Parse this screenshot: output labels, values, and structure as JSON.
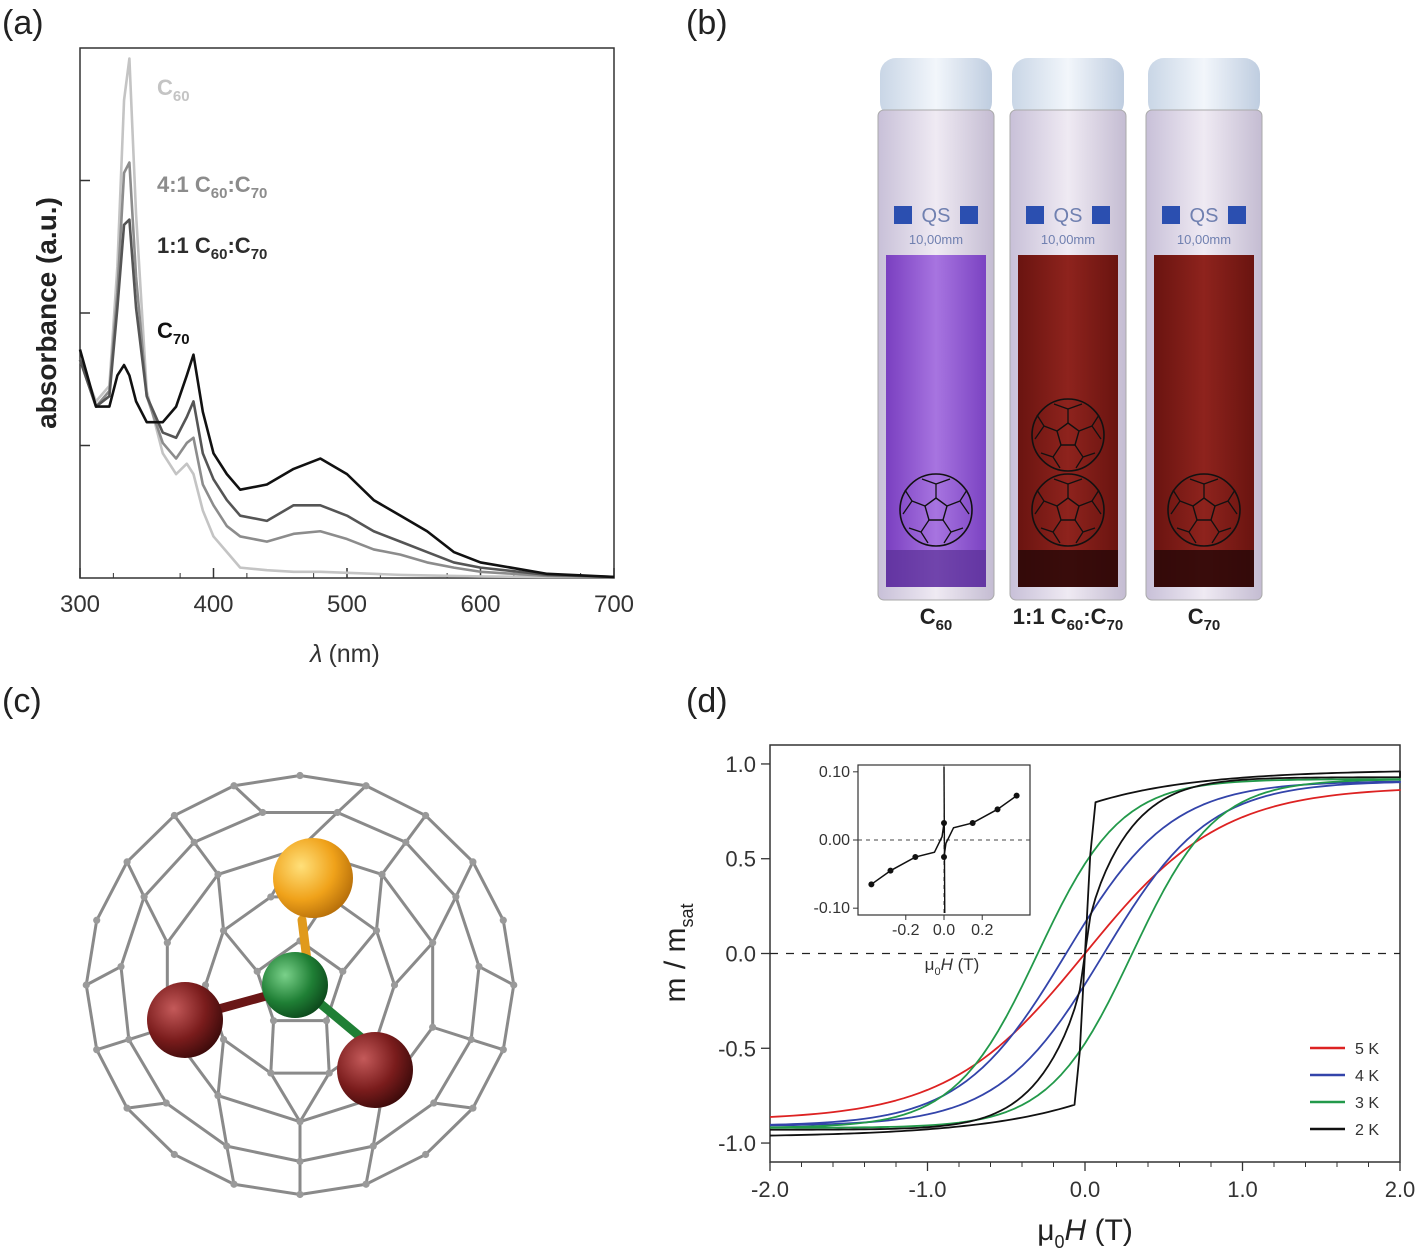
{
  "panels": {
    "a": {
      "label": "(a)",
      "ylabel": "absorbance (a.u.)",
      "xlabel_symbol": "λ",
      "xlabel_unit": "(nm)",
      "xticks": [
        "300",
        "400",
        "500",
        "600",
        "700"
      ],
      "legend": [
        {
          "base": "C",
          "sub": "60",
          "mid": "",
          "base2": "",
          "sub2": "",
          "color": "#c4c4c4"
        },
        {
          "base": "4:1 C",
          "sub": "60",
          "mid": ":C",
          "base2": "",
          "sub2": "70",
          "color": "#8c8c8c"
        },
        {
          "base": "1:1 C",
          "sub": "60",
          "mid": ":C",
          "base2": "",
          "sub2": "70",
          "color": "#2d2d2d"
        },
        {
          "base": "C",
          "sub": "70",
          "mid": "",
          "base2": "",
          "sub2": "",
          "color": "#111111"
        }
      ]
    },
    "b": {
      "label": "(b)",
      "cuvette_text": "QS",
      "cuvette_size": "10,00mm",
      "captions": [
        {
          "pre": "C",
          "sub": "60",
          "mid": "",
          "sub2": ""
        },
        {
          "pre": "1:1 C",
          "sub": "60",
          "mid": ":C",
          "sub2": "70"
        },
        {
          "pre": "C",
          "sub": "70",
          "mid": "",
          "sub2": ""
        }
      ],
      "colors": {
        "purple": "#8e52cf",
        "red": "#7d1a16"
      }
    },
    "c": {
      "label": "(c)",
      "colors": {
        "cage": "#888888",
        "gold": "#f0a21a",
        "green": "#1f7f35",
        "maroon": "#7a1c1c"
      }
    },
    "d": {
      "label": "(d)",
      "ylabel_pre": "m / m",
      "ylabel_sub": "sat",
      "xlabel_pre": "μ",
      "xlabel_sub": "0",
      "xlabel_italic": "H",
      "xlabel_unit": " (T)",
      "xticks": [
        "-2.0",
        "-1.0",
        "0.0",
        "1.0",
        "2.0"
      ],
      "yticks": [
        "1.0",
        "0.5",
        "0.0",
        "-0.5",
        "-1.0"
      ],
      "legend": [
        {
          "name": "5 K",
          "color": "#dd2222"
        },
        {
          "name": "4 K",
          "color": "#3344aa"
        },
        {
          "name": "3 K",
          "color": "#22994a"
        },
        {
          "name": "2 K",
          "color": "#111111"
        }
      ],
      "inset": {
        "xticks": [
          "-0.2",
          "0.0",
          "0.2"
        ],
        "yticks": [
          "0.10",
          "0.00",
          "-0.10"
        ],
        "xlabel_pre": "μ",
        "xlabel_sub": "0",
        "xlabel_italic": "H",
        "xlabel_unit": " (T)"
      }
    }
  },
  "chart_data": [
    {
      "type": "line",
      "panel": "a",
      "xlabel": "λ (nm)",
      "ylabel": "absorbance (a.u.)",
      "xlim": [
        300,
        700
      ],
      "ylim": [
        0,
        1.0
      ],
      "series": [
        {
          "name": "C60",
          "color": "#c4c4c4",
          "x": [
            300,
            312,
            322,
            328,
            333,
            337,
            342,
            350,
            362,
            372,
            380,
            385,
            392,
            400,
            410,
            420,
            440,
            460,
            480,
            500,
            520,
            540,
            560,
            580,
            600,
            650,
            700
          ],
          "y": [
            0.42,
            0.34,
            0.37,
            0.6,
            0.92,
            1.0,
            0.7,
            0.36,
            0.24,
            0.2,
            0.22,
            0.2,
            0.13,
            0.08,
            0.05,
            0.02,
            0.015,
            0.012,
            0.012,
            0.01,
            0.008,
            0.006,
            0.005,
            0.004,
            0.003,
            0.002,
            0.002
          ]
        },
        {
          "name": "4:1 C60:C70",
          "color": "#8c8c8c",
          "x": [
            300,
            312,
            322,
            328,
            333,
            337,
            342,
            350,
            362,
            372,
            380,
            385,
            392,
            400,
            410,
            420,
            440,
            460,
            480,
            500,
            520,
            540,
            560,
            580,
            600,
            650,
            700
          ],
          "y": [
            0.42,
            0.33,
            0.36,
            0.55,
            0.78,
            0.8,
            0.58,
            0.35,
            0.26,
            0.23,
            0.26,
            0.27,
            0.18,
            0.14,
            0.1,
            0.08,
            0.07,
            0.085,
            0.09,
            0.075,
            0.055,
            0.045,
            0.03,
            0.02,
            0.012,
            0.004,
            0.002
          ]
        },
        {
          "name": "1:1 C60:C70",
          "color": "#555555",
          "x": [
            300,
            312,
            322,
            328,
            333,
            337,
            342,
            350,
            362,
            372,
            380,
            385,
            392,
            400,
            410,
            420,
            440,
            460,
            480,
            500,
            520,
            540,
            560,
            580,
            600,
            650,
            700
          ],
          "y": [
            0.42,
            0.33,
            0.35,
            0.52,
            0.68,
            0.69,
            0.52,
            0.35,
            0.28,
            0.27,
            0.31,
            0.34,
            0.24,
            0.19,
            0.15,
            0.12,
            0.11,
            0.14,
            0.14,
            0.12,
            0.09,
            0.07,
            0.05,
            0.03,
            0.02,
            0.006,
            0.002
          ]
        },
        {
          "name": "C70",
          "color": "#111111",
          "x": [
            300,
            312,
            322,
            328,
            333,
            337,
            342,
            350,
            362,
            372,
            380,
            385,
            392,
            400,
            410,
            420,
            440,
            460,
            480,
            500,
            520,
            540,
            560,
            580,
            600,
            650,
            700
          ],
          "y": [
            0.44,
            0.33,
            0.33,
            0.39,
            0.41,
            0.39,
            0.34,
            0.3,
            0.3,
            0.33,
            0.39,
            0.43,
            0.32,
            0.24,
            0.2,
            0.17,
            0.18,
            0.21,
            0.23,
            0.2,
            0.15,
            0.12,
            0.09,
            0.05,
            0.03,
            0.008,
            0.002
          ]
        }
      ]
    },
    {
      "type": "line",
      "panel": "d",
      "xlabel": "μ0H (T)",
      "ylabel": "m / msat",
      "xlim": [
        -2.0,
        2.0
      ],
      "ylim": [
        -1.1,
        1.1
      ],
      "series": [
        {
          "name": "5 K",
          "color": "#dd2222",
          "x": [
            -2.0,
            -1.5,
            -1.0,
            -0.5,
            -0.2,
            0.0,
            0.2,
            0.5,
            1.0,
            1.5,
            2.0
          ],
          "y": [
            -0.88,
            -0.8,
            -0.64,
            -0.42,
            -0.18,
            0.0,
            0.18,
            0.42,
            0.64,
            0.8,
            0.88
          ]
        },
        {
          "name": "4 K",
          "color": "#3344aa",
          "x": [
            -2.0,
            -1.5,
            -1.0,
            -0.7,
            -0.4,
            0.0,
            0.4,
            0.7,
            1.0,
            1.5,
            2.0
          ],
          "y": [
            -0.91,
            -0.86,
            -0.73,
            -0.6,
            -0.44,
            0.0,
            0.44,
            0.6,
            0.73,
            0.86,
            0.91
          ]
        },
        {
          "name": "3 K",
          "color": "#22994a",
          "x": [
            -2.0,
            -1.5,
            -1.0,
            -0.8,
            -0.5,
            -0.2,
            0.0,
            0.2,
            0.5,
            0.8,
            1.0,
            1.5,
            2.0
          ],
          "y": [
            -0.92,
            -0.9,
            -0.82,
            -0.72,
            -0.5,
            -0.22,
            0.0,
            0.22,
            0.5,
            0.72,
            0.82,
            0.9,
            0.92
          ]
        },
        {
          "name": "2 K",
          "color": "#111111",
          "x": [
            -2.0,
            -1.5,
            -1.0,
            -0.5,
            -0.1,
            -0.05,
            0.0,
            0.05,
            0.1,
            0.5,
            1.0,
            1.5,
            2.0
          ],
          "y": [
            -0.97,
            -0.96,
            -0.93,
            -0.88,
            -0.8,
            -0.3,
            0.0,
            0.3,
            0.8,
            0.88,
            0.93,
            0.96,
            0.97
          ]
        }
      ],
      "inset": {
        "xlim": [
          -0.45,
          0.45
        ],
        "ylim": [
          -0.11,
          0.11
        ],
        "x": [
          -0.35,
          -0.25,
          -0.15,
          -0.05,
          0.0,
          0.05,
          0.15,
          0.25,
          0.35
        ],
        "y": [
          -0.06,
          -0.04,
          -0.02,
          0.0,
          0.02,
          0.0,
          0.02,
          0.04,
          0.06
        ]
      }
    }
  ]
}
